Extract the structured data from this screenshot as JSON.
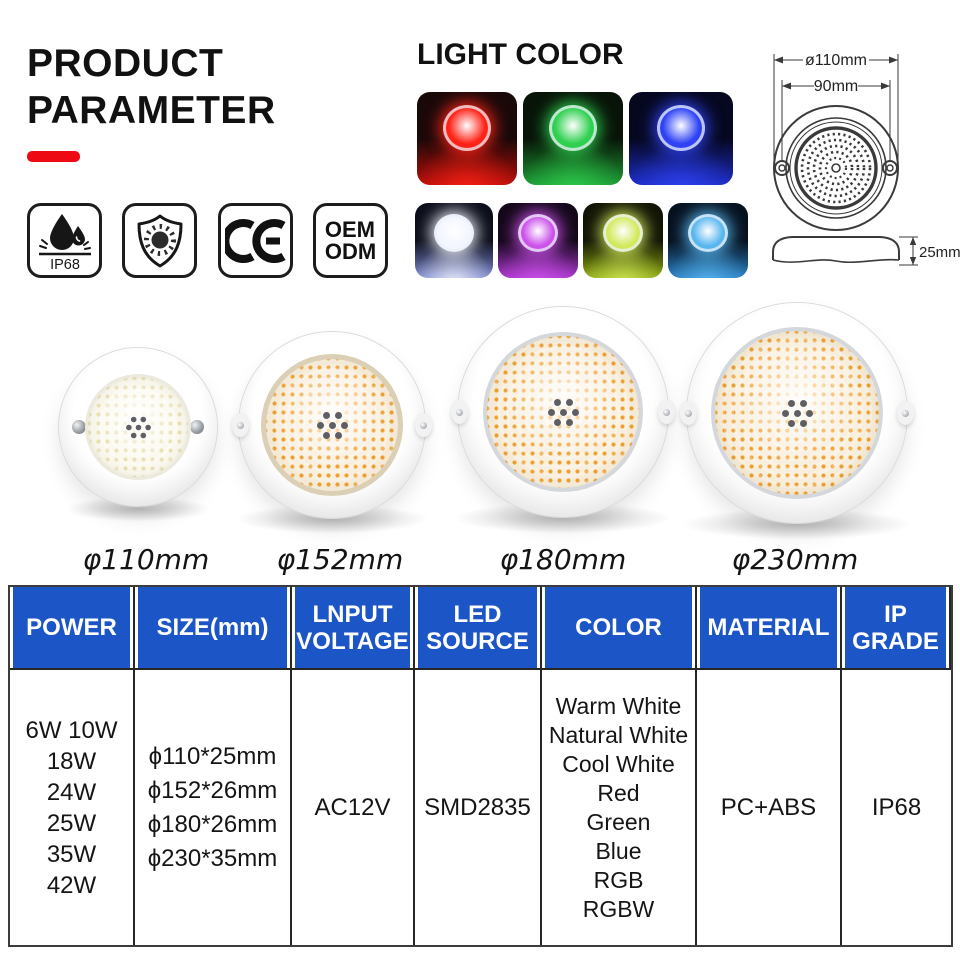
{
  "header": {
    "title_line1": "PRODUCT",
    "title_line2": "PARAMETER",
    "accent_color": "#ee0a12"
  },
  "badges": {
    "ip68_label": "IP68",
    "oem_line1": "OEM",
    "oem_line2": "ODM"
  },
  "light_color": {
    "title": "LIGHT COLOR",
    "tiles": [
      {
        "name": "red",
        "hex": "#ff2317",
        "floor": "#b80d08",
        "bg": "#1a0909"
      },
      {
        "name": "green",
        "hex": "#2fd04f",
        "floor": "#1d9a33",
        "bg": "#081408"
      },
      {
        "name": "blue",
        "hex": "#2f43f5",
        "floor": "#1c2cc4",
        "bg": "#060820"
      },
      {
        "name": "cool-white",
        "hex": "#f3f6ff",
        "floor": "#7e8ad2",
        "bg": "#0b0d1a"
      },
      {
        "name": "purple",
        "hex": "#cb52ea",
        "floor": "#a935cc",
        "bg": "#140819"
      },
      {
        "name": "yellow-green",
        "hex": "#d2e95d",
        "floor": "#90ab12",
        "bg": "#111405"
      },
      {
        "name": "ice-blue",
        "hex": "#58b6ef",
        "floor": "#2a80c4",
        "bg": "#06111e"
      }
    ]
  },
  "diagram": {
    "dim_outer": "ø110mm",
    "dim_inner": "90mm",
    "dim_height": "25mm"
  },
  "products": {
    "labels": [
      "φ110mm",
      "φ152mm",
      "φ180mm",
      "φ230mm"
    ]
  },
  "spec_table": {
    "header_bg": "#1c55c5",
    "headers": [
      [
        "POWER"
      ],
      [
        "SIZE(mm)"
      ],
      [
        "LNPUT",
        "VOLTAGE"
      ],
      [
        "LED",
        "SOURCE"
      ],
      [
        "COLOR"
      ],
      [
        "MATERIAL"
      ],
      [
        "IP",
        "GRADE"
      ]
    ],
    "power": [
      "6W 10W",
      "18W",
      "24W",
      "25W",
      "35W",
      "42W"
    ],
    "size": [
      "ϕ110*25mm",
      "ϕ152*26mm",
      "ϕ180*26mm",
      "ϕ230*35mm"
    ],
    "input_voltage": "AC12V",
    "led_source": "SMD2835",
    "colors": [
      "Warm White",
      "Natural White",
      "Cool White",
      "Red",
      "Green",
      "Blue",
      "RGB",
      "RGBW"
    ],
    "material": "PC+ABS",
    "ip_grade": "IP68"
  }
}
